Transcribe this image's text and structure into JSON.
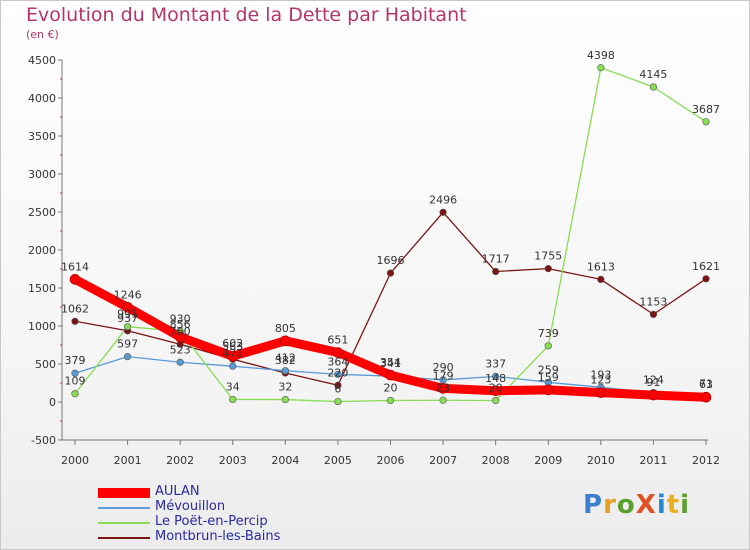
{
  "title": "Evolution du Montant de la Dette par Habitant",
  "subtitle": "(en €)",
  "logo": {
    "text": "ProXiti",
    "colors": [
      "#3a7fd0",
      "#e8a020",
      "#5aa02c",
      "#e05020",
      "#2a8ad0",
      "#e8b020",
      "#5aa02c"
    ]
  },
  "chart_data": {
    "type": "line",
    "title": "Evolution du Montant de la Dette par Habitant",
    "ylabel": "(en €)",
    "xlabel": "",
    "ylim": [
      -500,
      4500
    ],
    "yticks": [
      -500,
      0,
      500,
      1000,
      1500,
      2000,
      2500,
      3000,
      3500,
      4000,
      4500
    ],
    "x": [
      "2000",
      "2001",
      "2002",
      "2003",
      "2004",
      "2005",
      "2006",
      "2007",
      "2008",
      "2009",
      "2010",
      "2011",
      "2012"
    ],
    "grid": false,
    "legend_position": "bottom-left",
    "series": [
      {
        "name": "AULAN",
        "color": "#ff0000",
        "values": [
          1614,
          1246,
          856,
          602,
          805,
          651,
          354,
          179,
          148,
          159,
          123,
          91,
          63
        ]
      },
      {
        "name": "Mévouillon",
        "color": "#5b9bd5",
        "values": [
          379,
          597,
          523,
          471,
          412,
          364,
          341,
          290,
          337,
          259,
          193,
          124,
          71
        ]
      },
      {
        "name": "Le Poët-en-Percip",
        "color": "#88dd55",
        "values": [
          109,
          991,
          930,
          34,
          32,
          6,
          20,
          23,
          20,
          739,
          4398,
          4145,
          3687
        ]
      },
      {
        "name": "Montbrun-les-Bains",
        "color": "#7b1515",
        "values": [
          1062,
          937,
          760,
          563,
          382,
          220,
          1696,
          2496,
          1717,
          1755,
          1613,
          1153,
          1621
        ]
      }
    ]
  }
}
